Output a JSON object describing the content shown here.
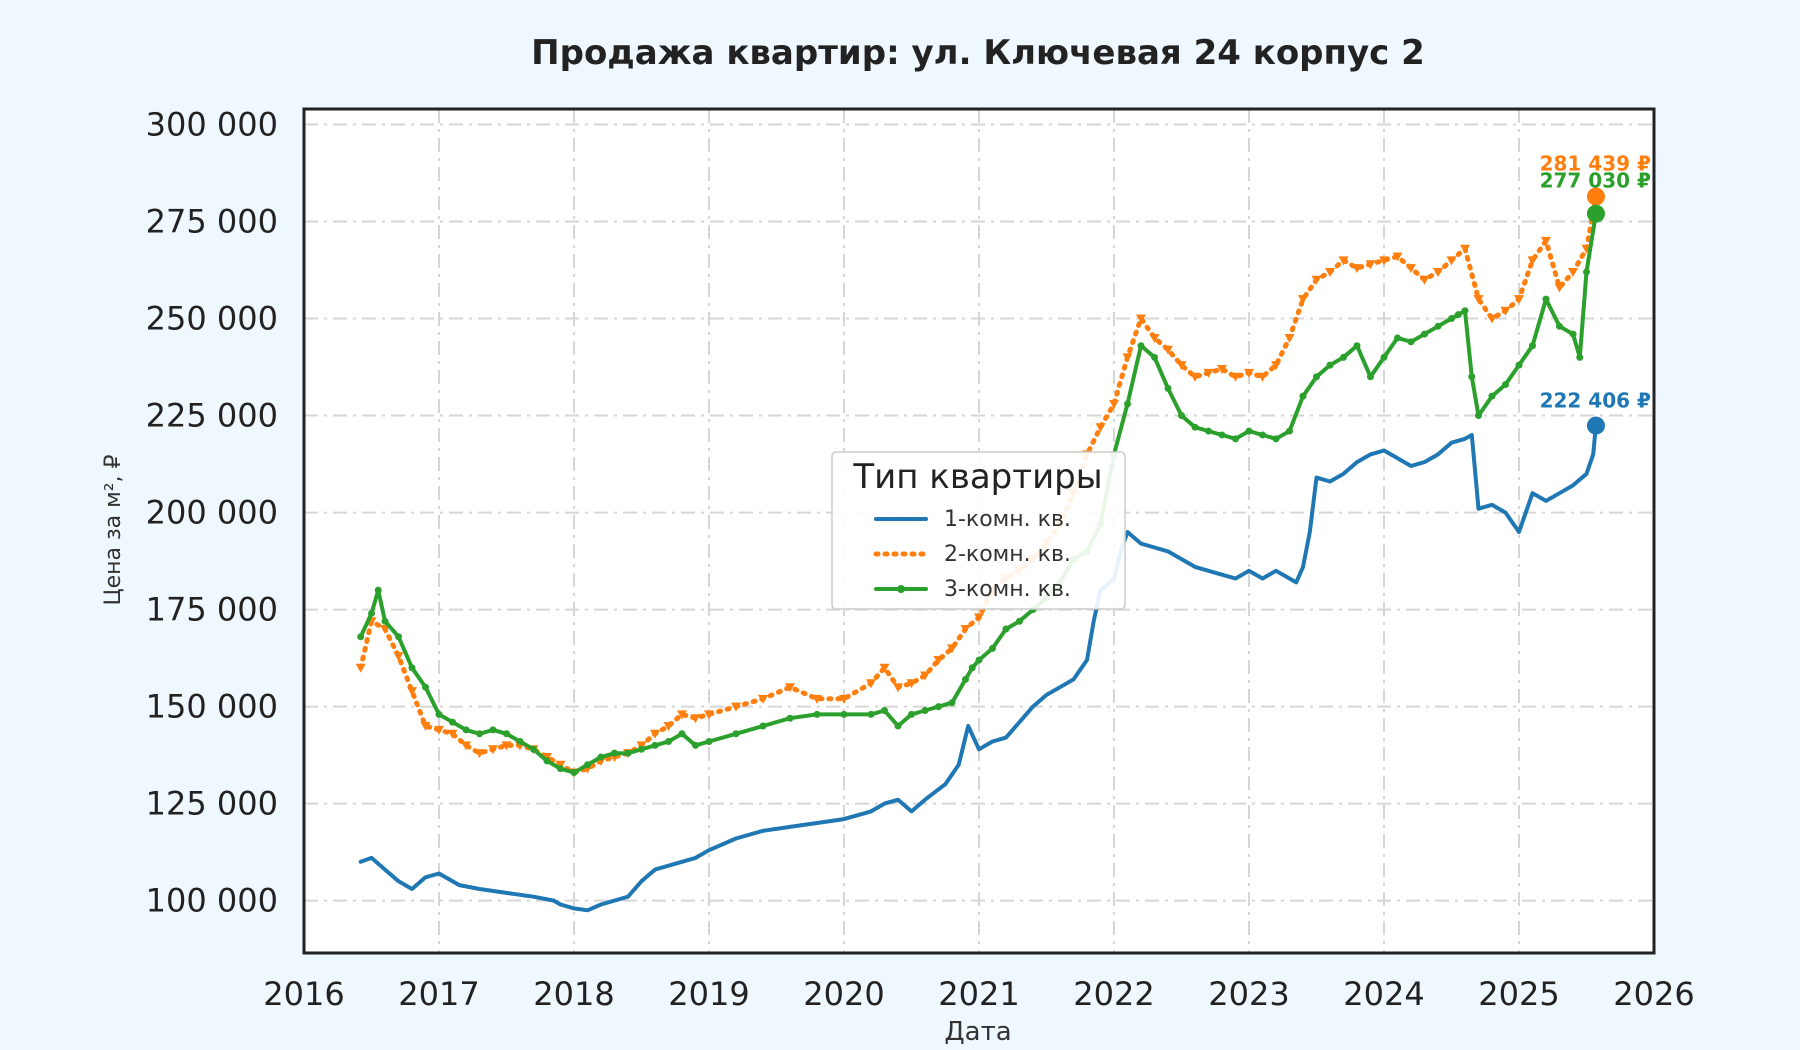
{
  "chart_data": {
    "type": "line",
    "title": "Продажа квартир: ул. Ключевая 24 корпус 2",
    "xlabel": "Дата",
    "ylabel": "Цена за м², ₽",
    "xlim": [
      2016,
      2026
    ],
    "ylim": [
      86500,
      304000
    ],
    "x_ticks": [
      2016,
      2017,
      2018,
      2019,
      2020,
      2021,
      2022,
      2023,
      2024,
      2025,
      2026
    ],
    "y_ticks": [
      100000,
      125000,
      150000,
      175000,
      200000,
      225000,
      250000,
      275000,
      300000
    ],
    "y_tick_labels": [
      "100 000",
      "125 000",
      "150 000",
      "175 000",
      "200 000",
      "225 000",
      "250 000",
      "275 000",
      "300 000"
    ],
    "grid": true,
    "legend": {
      "title": "Тип квартиры",
      "position": "center"
    },
    "series": [
      {
        "name": "1-комн. кв.",
        "color": "#1f77b4",
        "style": "solid",
        "x": [
          2016.42,
          2016.5,
          2016.6,
          2016.7,
          2016.8,
          2016.9,
          2017.0,
          2017.15,
          2017.3,
          2017.5,
          2017.7,
          2017.85,
          2017.9,
          2018.0,
          2018.1,
          2018.2,
          2018.4,
          2018.5,
          2018.6,
          2018.7,
          2018.8,
          2018.9,
          2019.0,
          2019.2,
          2019.4,
          2019.6,
          2019.8,
          2020.0,
          2020.2,
          2020.3,
          2020.4,
          2020.5,
          2020.6,
          2020.75,
          2020.85,
          2020.92,
          2021.0,
          2021.1,
          2021.2,
          2021.3,
          2021.4,
          2021.5,
          2021.6,
          2021.7,
          2021.8,
          2021.85,
          2021.9,
          2022.0,
          2022.05,
          2022.1,
          2022.2,
          2022.3,
          2022.4,
          2022.5,
          2022.6,
          2022.7,
          2022.8,
          2022.9,
          2023.0,
          2023.1,
          2023.2,
          2023.3,
          2023.35,
          2023.4,
          2023.45,
          2023.5,
          2023.6,
          2023.7,
          2023.8,
          2023.9,
          2024.0,
          2024.1,
          2024.2,
          2024.3,
          2024.4,
          2024.5,
          2024.6,
          2024.65,
          2024.7,
          2024.8,
          2024.9,
          2025.0,
          2025.1,
          2025.2,
          2025.3,
          2025.4,
          2025.5,
          2025.55,
          2025.57
        ],
        "values": [
          110000,
          111000,
          108000,
          105000,
          103000,
          106000,
          107000,
          104000,
          103000,
          102000,
          101000,
          100000,
          99000,
          98000,
          97500,
          99000,
          101000,
          105000,
          108000,
          109000,
          110000,
          111000,
          113000,
          116000,
          118000,
          119000,
          120000,
          121000,
          123000,
          125000,
          126000,
          123000,
          126000,
          130000,
          135000,
          145000,
          139000,
          141000,
          142000,
          146000,
          150000,
          153000,
          155000,
          157000,
          162000,
          172000,
          180000,
          183000,
          190000,
          195000,
          192000,
          191000,
          190000,
          188000,
          186000,
          185000,
          184000,
          183000,
          185000,
          183000,
          185000,
          183000,
          182000,
          186000,
          195000,
          209000,
          208000,
          210000,
          213000,
          215000,
          216000,
          214000,
          212000,
          213000,
          215000,
          218000,
          219000,
          220000,
          201000,
          202000,
          200000,
          195000,
          205000,
          203000,
          205000,
          207000,
          210000,
          215000,
          222406
        ]
      },
      {
        "name": "2-комн. кв.",
        "color": "#ff7f0e",
        "style": "dotted",
        "x": [
          2016.42,
          2016.5,
          2016.6,
          2016.7,
          2016.8,
          2016.9,
          2017.0,
          2017.1,
          2017.2,
          2017.3,
          2017.4,
          2017.5,
          2017.6,
          2017.7,
          2017.8,
          2017.9,
          2018.0,
          2018.1,
          2018.2,
          2018.3,
          2018.4,
          2018.5,
          2018.6,
          2018.7,
          2018.8,
          2018.9,
          2019.0,
          2019.2,
          2019.4,
          2019.6,
          2019.8,
          2020.0,
          2020.2,
          2020.3,
          2020.4,
          2020.5,
          2020.6,
          2020.7,
          2020.8,
          2020.9,
          2021.0,
          2021.1,
          2021.2,
          2021.3,
          2021.4,
          2021.5,
          2021.6,
          2021.7,
          2021.8,
          2021.9,
          2022.0,
          2022.1,
          2022.2,
          2022.3,
          2022.4,
          2022.5,
          2022.6,
          2022.7,
          2022.8,
          2022.9,
          2023.0,
          2023.1,
          2023.2,
          2023.3,
          2023.4,
          2023.5,
          2023.6,
          2023.7,
          2023.8,
          2023.9,
          2024.0,
          2024.1,
          2024.2,
          2024.3,
          2024.4,
          2024.5,
          2024.6,
          2024.7,
          2024.8,
          2024.9,
          2025.0,
          2025.1,
          2025.2,
          2025.3,
          2025.4,
          2025.5,
          2025.57
        ],
        "values": [
          160000,
          172000,
          170000,
          163000,
          154000,
          145000,
          144000,
          143000,
          140000,
          138000,
          139000,
          140000,
          140000,
          139000,
          137000,
          135000,
          133000,
          134000,
          136000,
          137000,
          138000,
          140000,
          143000,
          145000,
          148000,
          147000,
          148000,
          150000,
          152000,
          155000,
          152000,
          152000,
          156000,
          160000,
          155000,
          156000,
          158000,
          162000,
          165000,
          170000,
          173000,
          180000,
          183000,
          185000,
          188000,
          192000,
          197000,
          205000,
          215000,
          222000,
          228000,
          240000,
          250000,
          245000,
          242000,
          238000,
          235000,
          236000,
          237000,
          235000,
          236000,
          235000,
          238000,
          245000,
          255000,
          260000,
          262000,
          265000,
          263000,
          264000,
          265000,
          266000,
          263000,
          260000,
          262000,
          265000,
          268000,
          255000,
          250000,
          252000,
          255000,
          265000,
          270000,
          258000,
          262000,
          268000,
          281439
        ]
      },
      {
        "name": "3-комн. кв.",
        "color": "#2ca02c",
        "style": "solid-markers",
        "x": [
          2016.42,
          2016.5,
          2016.55,
          2016.6,
          2016.7,
          2016.8,
          2016.9,
          2017.0,
          2017.1,
          2017.2,
          2017.3,
          2017.4,
          2017.5,
          2017.6,
          2017.7,
          2017.8,
          2017.9,
          2018.0,
          2018.1,
          2018.2,
          2018.3,
          2018.4,
          2018.5,
          2018.6,
          2018.7,
          2018.8,
          2018.9,
          2019.0,
          2019.2,
          2019.4,
          2019.6,
          2019.8,
          2020.0,
          2020.2,
          2020.3,
          2020.4,
          2020.5,
          2020.6,
          2020.7,
          2020.8,
          2020.9,
          2020.95,
          2021.0,
          2021.1,
          2021.2,
          2021.3,
          2021.4,
          2021.5,
          2021.6,
          2021.7,
          2021.8,
          2021.9,
          2022.0,
          2022.1,
          2022.2,
          2022.3,
          2022.4,
          2022.5,
          2022.6,
          2022.7,
          2022.8,
          2022.9,
          2023.0,
          2023.1,
          2023.2,
          2023.3,
          2023.4,
          2023.5,
          2023.6,
          2023.7,
          2023.8,
          2023.9,
          2024.0,
          2024.1,
          2024.2,
          2024.3,
          2024.4,
          2024.5,
          2024.55,
          2024.6,
          2024.65,
          2024.7,
          2024.8,
          2024.9,
          2025.0,
          2025.1,
          2025.2,
          2025.3,
          2025.4,
          2025.45,
          2025.5,
          2025.57
        ],
        "values": [
          168000,
          174000,
          180000,
          172000,
          168000,
          160000,
          155000,
          148000,
          146000,
          144000,
          143000,
          144000,
          143000,
          141000,
          139000,
          136000,
          134000,
          133000,
          135000,
          137000,
          138000,
          138000,
          139000,
          140000,
          141000,
          143000,
          140000,
          141000,
          143000,
          145000,
          147000,
          148000,
          148000,
          148000,
          149000,
          145000,
          148000,
          149000,
          150000,
          151000,
          157000,
          160000,
          162000,
          165000,
          170000,
          172000,
          175000,
          178000,
          182000,
          188000,
          190000,
          197000,
          215000,
          228000,
          243000,
          240000,
          232000,
          225000,
          222000,
          221000,
          220000,
          219000,
          221000,
          220000,
          219000,
          221000,
          230000,
          235000,
          238000,
          240000,
          243000,
          235000,
          240000,
          245000,
          244000,
          246000,
          248000,
          250000,
          251000,
          252000,
          235000,
          225000,
          230000,
          233000,
          238000,
          243000,
          255000,
          248000,
          246000,
          240000,
          262000,
          277030
        ]
      }
    ],
    "end_labels": [
      "222 406 ₽",
      "281 439 ₽",
      "277 030 ₽"
    ]
  }
}
